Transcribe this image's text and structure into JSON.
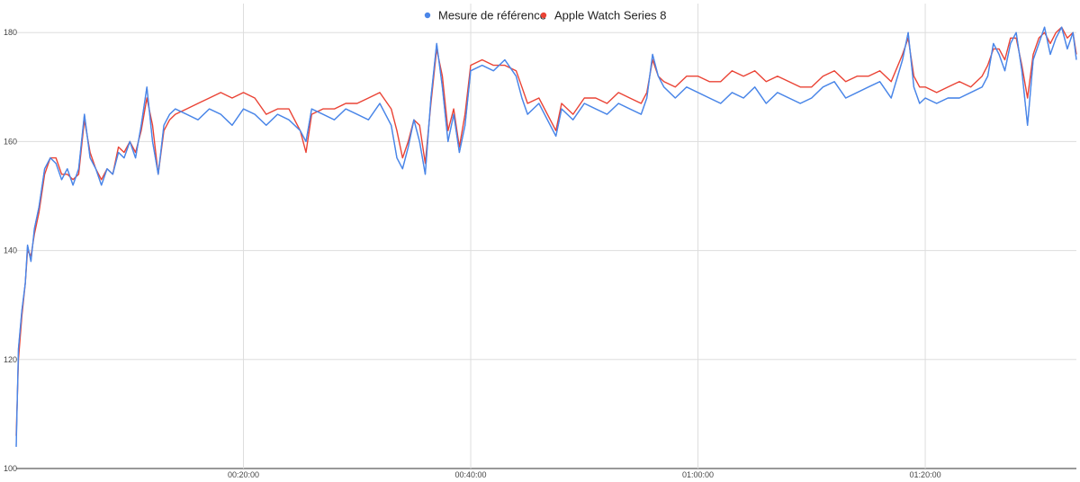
{
  "chart_data": {
    "type": "line",
    "x_unit": "elapsed time (hh:mm:ss)",
    "x_ticks": [
      "00:20:00",
      "00:40:00",
      "01:00:00",
      "01:20:00"
    ],
    "x_tick_minutes": [
      20,
      40,
      60,
      80
    ],
    "xlim_minutes": [
      0,
      93.3
    ],
    "y_ticks": [
      100,
      120,
      140,
      160,
      180
    ],
    "ylim": [
      100,
      184
    ],
    "grid": true,
    "legend_position": "top-center",
    "x_minutes": [
      0,
      0.2,
      0.5,
      0.8,
      1,
      1.3,
      1.6,
      2,
      2.5,
      3,
      3.5,
      4,
      4.5,
      5,
      5.5,
      6,
      6.5,
      7,
      7.5,
      8,
      8.5,
      9,
      9.5,
      10,
      10.5,
      11,
      11.5,
      12,
      12.5,
      13,
      13.5,
      14,
      15,
      16,
      17,
      18,
      19,
      20,
      21,
      22,
      23,
      24,
      25,
      25.5,
      26,
      27,
      28,
      29,
      30,
      31,
      32,
      33,
      33.5,
      34,
      34.5,
      35,
      35.5,
      36,
      36.5,
      37,
      37.5,
      38,
      38.5,
      39,
      39.5,
      40,
      41,
      42,
      43,
      44,
      44.5,
      45,
      46,
      47,
      47.5,
      48,
      49,
      50,
      51,
      52,
      53,
      54,
      55,
      55.5,
      56,
      56.5,
      57,
      58,
      59,
      60,
      61,
      62,
      63,
      64,
      65,
      66,
      67,
      68,
      69,
      70,
      71,
      72,
      73,
      74,
      75,
      76,
      77,
      78,
      78.5,
      79,
      79.5,
      80,
      81,
      82,
      83,
      84,
      85,
      85.5,
      86,
      86.5,
      87,
      87.5,
      88,
      88.5,
      89,
      89.5,
      90,
      90.5,
      91,
      91.5,
      92,
      92.5,
      93,
      93.3
    ],
    "series": [
      {
        "name": "Mesure de référence",
        "color": "#4a86e8",
        "values": [
          104,
          122,
          129,
          134,
          141,
          138,
          144,
          148,
          155,
          157,
          156,
          153,
          155,
          152,
          155,
          165,
          157,
          155,
          152,
          155,
          154,
          158,
          157,
          160,
          157,
          163,
          170,
          160,
          154,
          163,
          165,
          166,
          165,
          164,
          166,
          165,
          163,
          166,
          165,
          163,
          165,
          164,
          162,
          160,
          166,
          165,
          164,
          166,
          165,
          164,
          167,
          163,
          157,
          155,
          159,
          164,
          160,
          154,
          168,
          178,
          170,
          160,
          165,
          158,
          163,
          173,
          174,
          173,
          175,
          172,
          168,
          165,
          167,
          163,
          161,
          166,
          164,
          167,
          166,
          165,
          167,
          166,
          165,
          168,
          176,
          172,
          170,
          168,
          170,
          169,
          168,
          167,
          169,
          168,
          170,
          167,
          169,
          168,
          167,
          168,
          170,
          171,
          168,
          169,
          170,
          171,
          168,
          175,
          180,
          170,
          167,
          168,
          167,
          168,
          168,
          169,
          170,
          172,
          178,
          176,
          173,
          178,
          180,
          173,
          163,
          175,
          178,
          181,
          176,
          179,
          181,
          177,
          180,
          175
        ]
      },
      {
        "name": "Apple Watch Series 8",
        "color": "#ea4335",
        "values": [
          106,
          120,
          128,
          134,
          140,
          139,
          143,
          147,
          154,
          157,
          157,
          154,
          154,
          153,
          154,
          164,
          158,
          155,
          153,
          155,
          154,
          159,
          158,
          160,
          158,
          162,
          168,
          163,
          154,
          162,
          164,
          165,
          166,
          167,
          168,
          169,
          168,
          169,
          168,
          165,
          166,
          166,
          162,
          158,
          165,
          166,
          166,
          167,
          167,
          168,
          169,
          166,
          162,
          157,
          160,
          164,
          163,
          156,
          167,
          177,
          172,
          162,
          166,
          159,
          165,
          174,
          175,
          174,
          174,
          173,
          170,
          167,
          168,
          164,
          162,
          167,
          165,
          168,
          168,
          167,
          169,
          168,
          167,
          169,
          175,
          172,
          171,
          170,
          172,
          172,
          171,
          171,
          173,
          172,
          173,
          171,
          172,
          171,
          170,
          170,
          172,
          173,
          171,
          172,
          172,
          173,
          171,
          176,
          179,
          172,
          170,
          170,
          169,
          170,
          171,
          170,
          172,
          174,
          177,
          177,
          175,
          179,
          179,
          174,
          168,
          176,
          179,
          180,
          178,
          180,
          181,
          179,
          180,
          176
        ]
      }
    ]
  }
}
